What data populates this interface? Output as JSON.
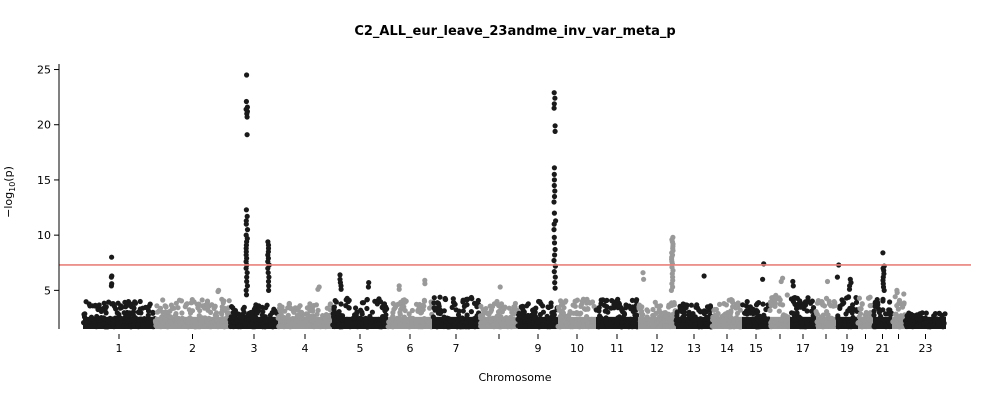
{
  "chart_data": {
    "type": "scatter",
    "subtype": "manhattan",
    "title": "C2_ALL_eur_leave_23andme_inv_var_meta_p",
    "xlabel": "Chromosome",
    "ylabel": "−log",
    "ylabel_sub": "10",
    "ylabel_tail": "(p)",
    "ylim": [
      1.5,
      25.5
    ],
    "y_ticks": [
      5,
      10,
      15,
      20,
      25
    ],
    "y_tick_labels": [
      "5",
      "10",
      "15",
      "20",
      "25"
    ],
    "significance_line": {
      "value": 7.3,
      "color": "#e8827c"
    },
    "colors": {
      "odd": "#1a1a1a",
      "even": "#999999"
    },
    "chromosomes": [
      {
        "chr": 1,
        "label": "1",
        "base": 4.0
      },
      {
        "chr": 2,
        "label": "2",
        "base": 4.2
      },
      {
        "chr": 3,
        "label": "3",
        "base": 3.8
      },
      {
        "chr": 4,
        "label": "4",
        "base": 3.9
      },
      {
        "chr": 5,
        "label": "5",
        "base": 4.3
      },
      {
        "chr": 6,
        "label": "6",
        "base": 4.5
      },
      {
        "chr": 7,
        "label": "7",
        "base": 4.4
      },
      {
        "chr": 8,
        "label": "",
        "base": 4.0
      },
      {
        "chr": 9,
        "label": "9",
        "base": 4.0
      },
      {
        "chr": 10,
        "label": "10",
        "base": 4.2
      },
      {
        "chr": 11,
        "label": "11",
        "base": 4.2
      },
      {
        "chr": 12,
        "label": "12",
        "base": 4.0
      },
      {
        "chr": 13,
        "label": "13",
        "base": 3.8
      },
      {
        "chr": 14,
        "label": "14",
        "base": 4.2
      },
      {
        "chr": 15,
        "label": "15",
        "base": 4.0
      },
      {
        "chr": 16,
        "label": "",
        "base": 4.6
      },
      {
        "chr": 17,
        "label": "17",
        "base": 4.5
      },
      {
        "chr": 18,
        "label": "",
        "base": 4.3
      },
      {
        "chr": 19,
        "label": "19",
        "base": 4.5
      },
      {
        "chr": 20,
        "label": "",
        "base": 4.4
      },
      {
        "chr": 21,
        "label": "21",
        "base": 4.2
      },
      {
        "chr": 22,
        "label": "",
        "base": 4.7
      },
      {
        "chr": 23,
        "label": "23",
        "base": 3.0
      }
    ],
    "peaks": [
      {
        "chr": 1,
        "pos": 0.4,
        "values": [
          8.0,
          6.3,
          6.2,
          5.6,
          5.4
        ]
      },
      {
        "chr": 2,
        "pos": 0.85,
        "values": [
          5.0,
          4.9
        ]
      },
      {
        "chr": 3,
        "pos": 0.35,
        "values": [
          24.5,
          22.1,
          21.6,
          21.4,
          21.2,
          21.0,
          20.7,
          19.1,
          12.3,
          11.7,
          11.3,
          11.0,
          10.5,
          10.0,
          9.7,
          9.4,
          9.1,
          8.8,
          8.5,
          8.2,
          7.9,
          7.6,
          7.3,
          7.0,
          6.6,
          6.2,
          5.8,
          5.4,
          5.0,
          4.6
        ]
      },
      {
        "chr": 3,
        "pos": 0.8,
        "values": [
          9.4,
          9.1,
          8.8,
          8.5,
          8.2,
          7.9,
          7.6,
          7.3,
          7.0,
          6.6,
          6.2,
          5.8,
          5.4,
          5.0
        ]
      },
      {
        "chr": 4,
        "pos": 0.75,
        "values": [
          5.3,
          5.1
        ]
      },
      {
        "chr": 5,
        "pos": 0.15,
        "values": [
          6.4,
          6.0,
          5.7,
          5.4,
          5.1
        ]
      },
      {
        "chr": 5,
        "pos": 0.65,
        "values": [
          5.7,
          5.3
        ]
      },
      {
        "chr": 6,
        "pos": 0.25,
        "values": [
          5.4,
          5.1
        ]
      },
      {
        "chr": 6,
        "pos": 0.85,
        "values": [
          5.9,
          5.6
        ]
      },
      {
        "chr": 8,
        "pos": 0.55,
        "values": [
          5.3
        ]
      },
      {
        "chr": 9,
        "pos": 0.92,
        "values": [
          22.9,
          22.4,
          21.9,
          21.5,
          19.9,
          19.4,
          16.1,
          15.5,
          15.0,
          14.5,
          14.0,
          13.5,
          13.0,
          12.0,
          11.3,
          11.0,
          10.5,
          9.8,
          9.3,
          8.7,
          8.2,
          7.7,
          7.2,
          6.7,
          6.2,
          5.7,
          5.2
        ]
      },
      {
        "chr": 12,
        "pos": 0.9,
        "values": [
          9.8,
          9.6,
          9.4,
          9.2,
          9.0,
          8.8,
          8.6,
          8.4,
          8.2,
          8.0,
          7.8,
          7.6,
          7.4,
          7.1,
          6.8,
          6.5,
          6.2,
          5.9,
          5.6,
          5.3,
          5.0
        ]
      },
      {
        "chr": 12,
        "pos": 0.15,
        "values": [
          6.6,
          6.0
        ]
      },
      {
        "chr": 13,
        "pos": 0.8,
        "values": [
          6.3
        ]
      },
      {
        "chr": 15,
        "pos": 0.75,
        "values": [
          7.4,
          6.0
        ]
      },
      {
        "chr": 16,
        "pos": 0.6,
        "values": [
          6.1,
          5.8
        ]
      },
      {
        "chr": 17,
        "pos": 0.1,
        "values": [
          5.8,
          5.4
        ]
      },
      {
        "chr": 18,
        "pos": 0.55,
        "values": [
          5.8
        ]
      },
      {
        "chr": 19,
        "pos": 0.1,
        "values": [
          7.3,
          6.2
        ]
      },
      {
        "chr": 19,
        "pos": 0.65,
        "values": [
          6.0,
          5.7,
          5.4,
          5.1
        ]
      },
      {
        "chr": 21,
        "pos": 0.55,
        "values": [
          8.4,
          7.2,
          7.0,
          6.8,
          6.5,
          6.2,
          5.9,
          5.6,
          5.3,
          5.0
        ]
      },
      {
        "chr": 22,
        "pos": 0.35,
        "values": [
          5.0,
          4.8
        ]
      }
    ]
  }
}
